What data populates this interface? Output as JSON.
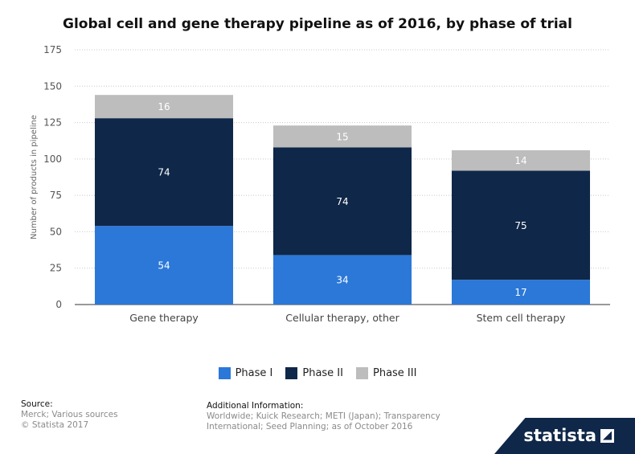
{
  "chart_data": {
    "type": "bar",
    "stacked": true,
    "title": "Global cell and gene therapy pipeline as of 2016, by phase of trial",
    "xlabel": "",
    "ylabel": "Number of products in pipeline",
    "ylim": [
      0,
      175
    ],
    "yticks": [
      0,
      25,
      50,
      75,
      100,
      125,
      150,
      175
    ],
    "grid": true,
    "legend_position": "bottom-center",
    "categories": [
      "Gene therapy",
      "Cellular therapy, other",
      "Stem cell therapy"
    ],
    "series": [
      {
        "name": "Phase I",
        "color": "#2b78d8",
        "label_color": "#ffffff",
        "values": [
          54,
          34,
          17
        ]
      },
      {
        "name": "Phase II",
        "color": "#0f2748",
        "label_color": "#ffffff",
        "values": [
          74,
          74,
          75
        ]
      },
      {
        "name": "Phase III",
        "color": "#bdbdbd",
        "label_color": "#ffffff",
        "values": [
          16,
          15,
          14
        ]
      }
    ]
  },
  "footer": {
    "source_heading": "Source:",
    "source_lines": [
      "Merck; Various sources",
      "© Statista 2017"
    ],
    "info_heading": "Additional Information:",
    "info_text": "Worldwide; Kuick Research; METI (Japan); Transparency International; Seed Planning; as of October 2016"
  },
  "brand": {
    "name": "statista"
  }
}
